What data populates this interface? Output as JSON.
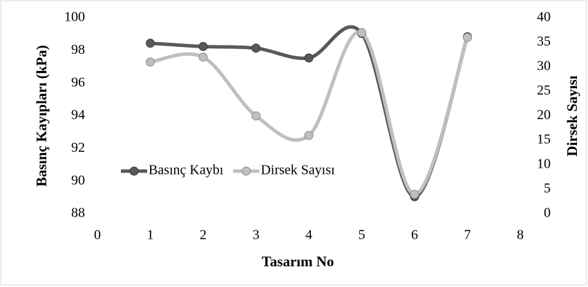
{
  "chart_data": {
    "type": "line",
    "x_label": "Tasarım No",
    "y_label": "Basınç Kayıpları (kPa)",
    "y2_label": "Dirsek Sayısı",
    "x": [
      1,
      2,
      3,
      4,
      5,
      6,
      7
    ],
    "series": [
      {
        "name": "Basınç Kaybı",
        "color": "#595959",
        "values": [
          98.45,
          98.25,
          98.15,
          97.55,
          99.05,
          89.05,
          98.85
        ]
      },
      {
        "name": "Dirsek Sayısı",
        "color": "#bfbfbf",
        "axis": "y2",
        "values": [
          31,
          32,
          20,
          16,
          37,
          4,
          36
        ]
      }
    ],
    "xlim": [
      0,
      8
    ],
    "xticks": [
      0,
      1,
      2,
      3,
      4,
      5,
      6,
      7,
      8
    ],
    "ylim": [
      88,
      100
    ],
    "yticks": [
      88,
      90,
      92,
      94,
      96,
      98,
      100
    ],
    "y2lim": [
      0,
      40
    ],
    "y2ticks": [
      0,
      5,
      10,
      15,
      20,
      25,
      30,
      35,
      40
    ],
    "smooth": true,
    "grid": false,
    "legend": "left"
  }
}
